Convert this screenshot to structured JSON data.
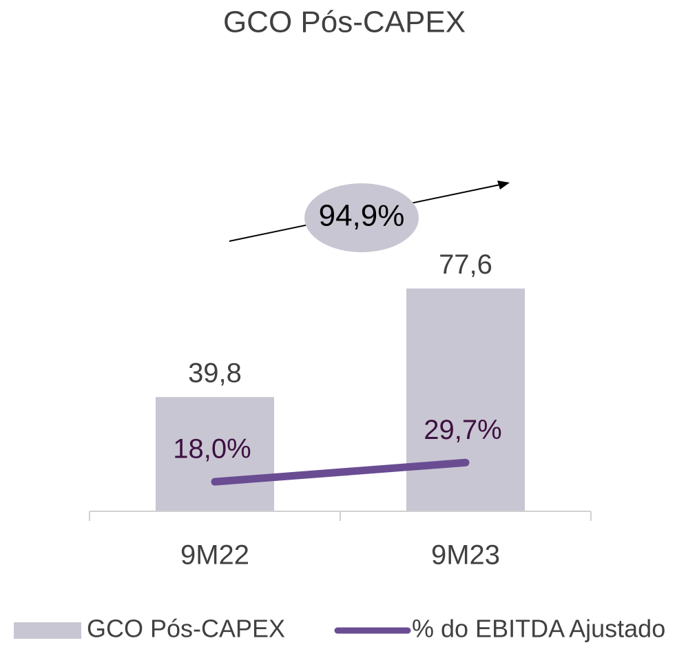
{
  "chart_data": {
    "type": "bar",
    "title": "GCO Pós-CAPEX",
    "categories": [
      "9M22",
      "9M23"
    ],
    "series": [
      {
        "name": "GCO Pós-CAPEX",
        "type": "bar",
        "color": "#c8c6d2",
        "values": [
          39.8,
          77.6
        ],
        "value_labels": [
          "39,8",
          "77,6"
        ]
      },
      {
        "name": "% do EBITDA Ajustado",
        "type": "line",
        "axis": "y2",
        "color": "#6a4c93",
        "values": [
          18.0,
          29.7
        ],
        "value_labels": [
          "18,0%",
          "29,7%"
        ]
      }
    ],
    "ylim": [
      0,
      120
    ],
    "y2lim": [
      0,
      210
    ],
    "annotation": "94,9%",
    "legend": "bottom"
  }
}
